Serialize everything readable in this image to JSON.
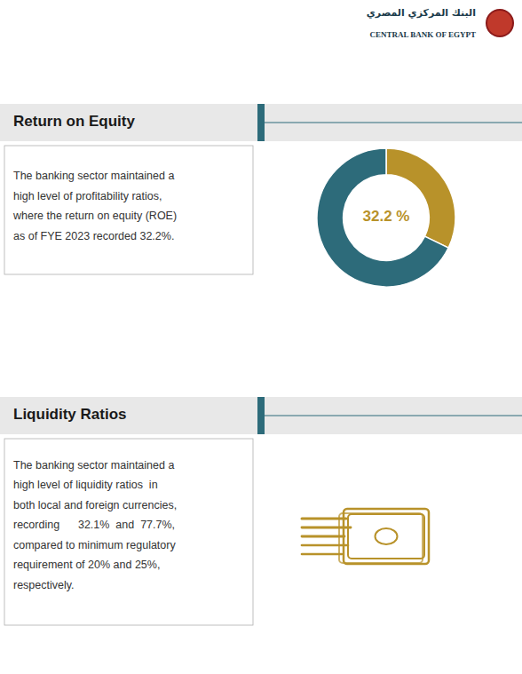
{
  "chart_data": {
    "type": "donut",
    "title": "Return on Equity",
    "values": [
      32.2,
      67.8
    ],
    "colors": [
      "#b8922a",
      "#2d6b7a"
    ],
    "annotations": [
      "The banking sector maintained a\nhigh level of profitability ratios,\nwhere the return on equity (ROE)\nas of FYE 2023 recorded 32.2%.",
      "32.2 %",
      "Liquidity Ratios",
      "The banking sector maintained a\nhigh level of liquidity ratios  in\nboth local and foreign currencies,\nrecording      32.1%  and  77.7%,\ncompared to minimum regulatory\nrequirement of 20% and 25%,\nrespectively.",
      "CENTRAL BANK OF EGYPT",
      "البنك المركزي المصري"
    ]
  }
}
